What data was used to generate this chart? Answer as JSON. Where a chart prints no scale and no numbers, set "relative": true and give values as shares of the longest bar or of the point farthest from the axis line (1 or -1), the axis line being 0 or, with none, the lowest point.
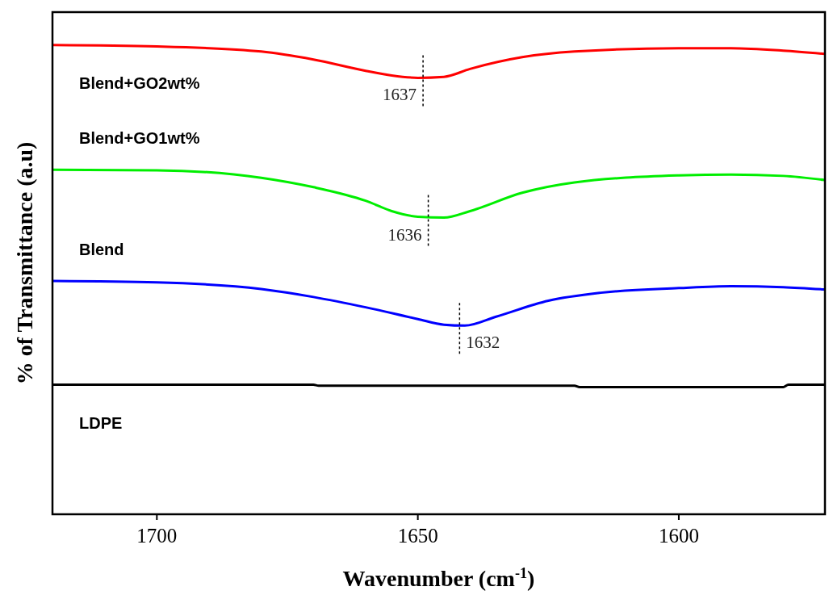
{
  "chart_data": {
    "type": "line",
    "relative": true,
    "xlabel": "Wavenumber (cm$^{-1}$)",
    "ylabel": "% of Transmittance (a.u)",
    "xlim": [
      1720,
      1572
    ],
    "xticks": [
      1700,
      1650,
      1600
    ],
    "grid": false,
    "tick_labels": "x",
    "series": [
      {
        "name": "Blend+GO2wt%",
        "color": "#ff0000",
        "x": [
          1720,
          1700,
          1680,
          1670,
          1660,
          1655,
          1650,
          1645,
          1640,
          1630,
          1620,
          1600,
          1590,
          1580,
          1572
        ],
        "values": [
          1.0,
          0.997,
          0.986,
          0.969,
          0.945,
          0.935,
          0.93,
          0.932,
          0.949,
          0.974,
          0.986,
          0.993,
          0.993,
          0.988,
          0.981
        ]
      },
      {
        "name": "Blend+GO1wt%",
        "color": "#00ee00",
        "x": [
          1720,
          1700,
          1680,
          1670,
          1660,
          1655,
          1650,
          1645,
          1640,
          1630,
          1620,
          1600,
          1590,
          1580,
          1572
        ],
        "values": [
          0.734,
          0.733,
          0.717,
          0.697,
          0.668,
          0.646,
          0.634,
          0.632,
          0.646,
          0.685,
          0.707,
          0.722,
          0.724,
          0.721,
          0.712
        ]
      },
      {
        "name": "Blend",
        "color": "#0000ff",
        "x": [
          1720,
          1700,
          1680,
          1670,
          1660,
          1650,
          1645,
          1641,
          1635,
          1625,
          1615,
          1600,
          1590,
          1580,
          1572
        ],
        "values": [
          0.497,
          0.494,
          0.48,
          0.463,
          0.441,
          0.416,
          0.404,
          0.402,
          0.421,
          0.455,
          0.472,
          0.482,
          0.486,
          0.484,
          0.479
        ]
      },
      {
        "name": "LDPE",
        "color": "#000000",
        "x": [
          1720,
          1670,
          1669,
          1620,
          1619,
          1580,
          1579,
          1572
        ],
        "values": [
          0.276,
          0.276,
          0.274,
          0.274,
          0.271,
          0.271,
          0.276,
          0.276
        ]
      }
    ],
    "annotations": [
      {
        "text": "1637",
        "x": 1649,
        "y": 0.93
      },
      {
        "text": "1636",
        "x": 1648,
        "y": 0.632
      },
      {
        "text": "1632",
        "x": 1642,
        "y": 0.402
      }
    ]
  }
}
